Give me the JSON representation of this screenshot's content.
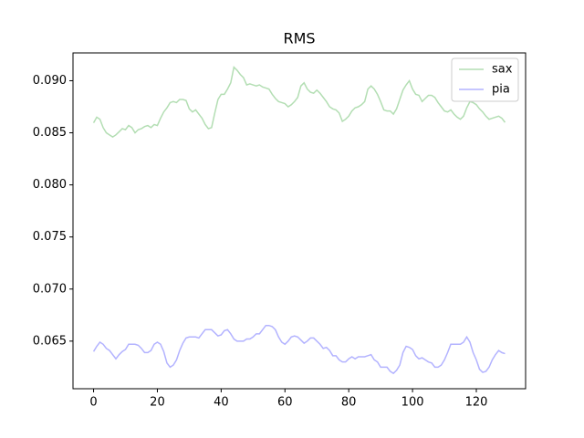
{
  "chart_data": {
    "type": "line",
    "title": "RMS",
    "x": [
      0,
      1,
      2,
      3,
      4,
      5,
      6,
      7,
      8,
      9,
      10,
      11,
      12,
      13,
      14,
      15,
      16,
      17,
      18,
      19,
      20,
      21,
      22,
      23,
      24,
      25,
      26,
      27,
      28,
      29,
      30,
      31,
      32,
      33,
      34,
      35,
      36,
      37,
      38,
      39,
      40,
      41,
      42,
      43,
      44,
      45,
      46,
      47,
      48,
      49,
      50,
      51,
      52,
      53,
      54,
      55,
      56,
      57,
      58,
      59,
      60,
      61,
      62,
      63,
      64,
      65,
      66,
      67,
      68,
      69,
      70,
      71,
      72,
      73,
      74,
      75,
      76,
      77,
      78,
      79,
      80,
      81,
      82,
      83,
      84,
      85,
      86,
      87,
      88,
      89,
      90,
      91,
      92,
      93,
      94,
      95,
      96,
      97,
      98,
      99,
      100,
      101,
      102,
      103,
      104,
      105,
      106,
      107,
      108,
      109,
      110,
      111,
      112,
      113,
      114,
      115,
      116,
      117,
      118,
      119,
      120,
      121,
      122,
      123,
      124,
      125,
      126,
      127,
      128,
      129
    ],
    "series": [
      {
        "name": "sax",
        "color": "#b3deb3",
        "values": [
          0.08596,
          0.0865,
          0.0863,
          0.0855,
          0.085,
          0.0848,
          0.0846,
          0.0848,
          0.0851,
          0.0854,
          0.0853,
          0.0857,
          0.0855,
          0.085,
          0.0853,
          0.0854,
          0.0856,
          0.0857,
          0.0855,
          0.0858,
          0.0857,
          0.0864,
          0.087,
          0.0874,
          0.0879,
          0.088,
          0.0879,
          0.0882,
          0.0882,
          0.0881,
          0.0873,
          0.087,
          0.0872,
          0.0868,
          0.0864,
          0.0858,
          0.0854,
          0.0855,
          0.0869,
          0.0882,
          0.0887,
          0.0887,
          0.0892,
          0.0898,
          0.0913,
          0.091,
          0.0906,
          0.0903,
          0.0896,
          0.0897,
          0.0896,
          0.0895,
          0.0896,
          0.0894,
          0.0893,
          0.0892,
          0.0887,
          0.0883,
          0.088,
          0.0879,
          0.0878,
          0.0875,
          0.0877,
          0.088,
          0.0884,
          0.0895,
          0.0898,
          0.0892,
          0.0889,
          0.0888,
          0.0891,
          0.0888,
          0.0884,
          0.088,
          0.0875,
          0.0873,
          0.0872,
          0.0869,
          0.0861,
          0.0863,
          0.0866,
          0.0871,
          0.0874,
          0.0875,
          0.0877,
          0.088,
          0.0892,
          0.0895,
          0.0892,
          0.0887,
          0.088,
          0.0872,
          0.0871,
          0.0871,
          0.0868,
          0.0873,
          0.0882,
          0.0891,
          0.0896,
          0.09,
          0.0892,
          0.0887,
          0.0886,
          0.088,
          0.0883,
          0.0886,
          0.0886,
          0.0884,
          0.0879,
          0.0875,
          0.0871,
          0.087,
          0.0872,
          0.0868,
          0.0865,
          0.0863,
          0.0866,
          0.0874,
          0.088,
          0.0879,
          0.0877,
          0.0873,
          0.087,
          0.0866,
          0.0863,
          0.0864,
          0.0865,
          0.0866,
          0.0864,
          0.086
        ]
      },
      {
        "name": "pia",
        "color": "#b3b3ff",
        "values": [
          0.064,
          0.0645,
          0.0649,
          0.0647,
          0.0643,
          0.0641,
          0.0637,
          0.0633,
          0.0637,
          0.064,
          0.0642,
          0.0647,
          0.0647,
          0.0647,
          0.0646,
          0.0643,
          0.0639,
          0.0639,
          0.0641,
          0.0647,
          0.0649,
          0.0647,
          0.064,
          0.0629,
          0.0625,
          0.0627,
          0.0632,
          0.0641,
          0.0648,
          0.0653,
          0.0654,
          0.0654,
          0.0654,
          0.0653,
          0.0657,
          0.0661,
          0.0661,
          0.0661,
          0.0658,
          0.0655,
          0.0656,
          0.066,
          0.0661,
          0.0657,
          0.0652,
          0.065,
          0.065,
          0.065,
          0.0652,
          0.0652,
          0.0654,
          0.0657,
          0.0657,
          0.0661,
          0.0665,
          0.0665,
          0.0664,
          0.0661,
          0.0654,
          0.0649,
          0.0647,
          0.065,
          0.0654,
          0.0655,
          0.0654,
          0.0651,
          0.0648,
          0.065,
          0.0653,
          0.0653,
          0.065,
          0.0647,
          0.0643,
          0.0644,
          0.0641,
          0.0636,
          0.0636,
          0.0632,
          0.063,
          0.063,
          0.0633,
          0.0635,
          0.0633,
          0.0635,
          0.0635,
          0.0635,
          0.0636,
          0.0637,
          0.0632,
          0.063,
          0.0625,
          0.0625,
          0.0625,
          0.0621,
          0.0619,
          0.0622,
          0.0627,
          0.0639,
          0.0645,
          0.0644,
          0.0642,
          0.0636,
          0.0633,
          0.0634,
          0.0632,
          0.063,
          0.0629,
          0.0625,
          0.0625,
          0.0627,
          0.0632,
          0.0639,
          0.0647,
          0.0647,
          0.0647,
          0.0647,
          0.0649,
          0.0654,
          0.0649,
          0.0639,
          0.0632,
          0.0623,
          0.062,
          0.0621,
          0.0625,
          0.0632,
          0.0637,
          0.0641,
          0.0639,
          0.0638
        ]
      }
    ],
    "xlim": [
      -6.45,
      135.45
    ],
    "xticks": [
      0,
      20,
      40,
      60,
      80,
      100,
      120
    ],
    "ylim": [
      0.06043,
      0.09267
    ],
    "yticks": [
      0.065,
      {
        "value": 0.07,
        "label": "0.070"
      },
      0.075,
      {
        "value": 0.08,
        "label": "0.080"
      },
      0.085,
      {
        "value": 0.09,
        "label": "0.090"
      }
    ],
    "legend": "upper right"
  }
}
